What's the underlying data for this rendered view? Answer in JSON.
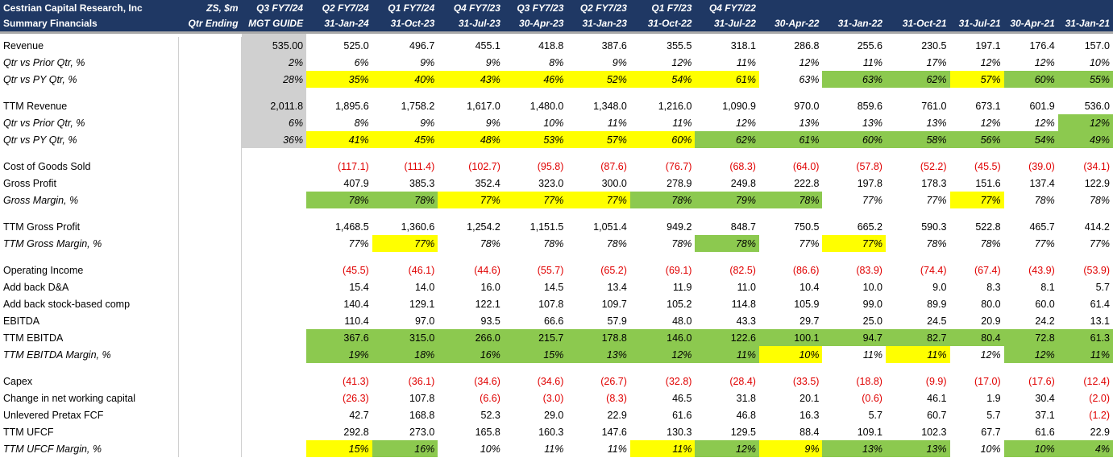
{
  "header": {
    "title_line1": "Cestrian Capital Research, Inc",
    "title_line2": "Summary Financials",
    "unit_line1": "ZS, $m",
    "unit_line2": "Qtr Ending",
    "periods_line1": [
      "Q3 FY7/24",
      "Q2 FY7/24",
      "Q1 FY7/24",
      "Q4 FY7/23",
      "Q3 FY7/23",
      "Q2 FY7/23",
      "Q1 F7/23",
      "Q4 FY7/22",
      "",
      "",
      "",
      "",
      "",
      ""
    ],
    "periods_line2": [
      "MGT GUIDE",
      "31-Jan-24",
      "31-Oct-23",
      "31-Jul-23",
      "30-Apr-23",
      "31-Jan-23",
      "31-Oct-22",
      "31-Jul-22",
      "30-Apr-22",
      "31-Jan-22",
      "31-Oct-21",
      "31-Jul-21",
      "30-Apr-21",
      "31-Jan-21"
    ]
  },
  "rows": [
    {
      "label": "Revenue",
      "italic": false,
      "values": [
        "535.00",
        "525.0",
        "496.7",
        "455.1",
        "418.8",
        "387.6",
        "355.5",
        "318.1",
        "286.8",
        "255.6",
        "230.5",
        "197.1",
        "176.4",
        "157.0"
      ],
      "fills": [
        "",
        "",
        "",
        "",
        "",
        "",
        "",
        "",
        "",
        "",
        "",
        "",
        "",
        ""
      ]
    },
    {
      "label": "Qtr vs Prior Qtr, %",
      "italic": true,
      "values": [
        "2%",
        "6%",
        "9%",
        "9%",
        "8%",
        "9%",
        "12%",
        "11%",
        "12%",
        "11%",
        "17%",
        "12%",
        "12%",
        "10%"
      ],
      "fills": [
        "",
        "",
        "",
        "",
        "",
        "",
        "",
        "",
        "",
        "",
        "",
        "",
        "",
        ""
      ]
    },
    {
      "label": "Qtr vs PY Qtr, %",
      "italic": true,
      "values": [
        "28%",
        "35%",
        "40%",
        "43%",
        "46%",
        "52%",
        "54%",
        "61%",
        "63%",
        "63%",
        "62%",
        "57%",
        "60%",
        "55%"
      ],
      "fills": [
        "",
        "y",
        "y",
        "y",
        "y",
        "y",
        "y",
        "y",
        "",
        "g",
        "g",
        "y",
        "g",
        "g"
      ]
    },
    {
      "gap": true
    },
    {
      "label": "TTM Revenue",
      "italic": false,
      "values": [
        "2,011.8",
        "1,895.6",
        "1,758.2",
        "1,617.0",
        "1,480.0",
        "1,348.0",
        "1,216.0",
        "1,090.9",
        "970.0",
        "859.6",
        "761.0",
        "673.1",
        "601.9",
        "536.0"
      ],
      "fills": [
        "",
        "",
        "",
        "",
        "",
        "",
        "",
        "",
        "",
        "",
        "",
        "",
        "",
        ""
      ]
    },
    {
      "label": "Qtr vs Prior Qtr, %",
      "italic": true,
      "values": [
        "6%",
        "8%",
        "9%",
        "9%",
        "10%",
        "11%",
        "11%",
        "12%",
        "13%",
        "13%",
        "13%",
        "12%",
        "12%",
        "12%"
      ],
      "fills": [
        "",
        "",
        "",
        "",
        "",
        "",
        "",
        "",
        "",
        "",
        "",
        "",
        "",
        "g"
      ]
    },
    {
      "label": "Qtr vs PY Qtr, %",
      "italic": true,
      "values": [
        "36%",
        "41%",
        "45%",
        "48%",
        "53%",
        "57%",
        "60%",
        "62%",
        "61%",
        "60%",
        "58%",
        "56%",
        "54%",
        "49%"
      ],
      "fills": [
        "",
        "y",
        "y",
        "y",
        "y",
        "y",
        "y",
        "g",
        "g",
        "g",
        "g",
        "g",
        "g",
        "g"
      ]
    },
    {
      "gap": true
    },
    {
      "label": "Cost of Goods Sold",
      "italic": false,
      "values": [
        "",
        "(117.1)",
        "(111.4)",
        "(102.7)",
        "(95.8)",
        "(87.6)",
        "(76.7)",
        "(68.3)",
        "(64.0)",
        "(57.8)",
        "(52.2)",
        "(45.5)",
        "(39.0)",
        "(34.1)"
      ],
      "fills": [
        "",
        "",
        "",
        "",
        "",
        "",
        "",
        "",
        "",
        "",
        "",
        "",
        "",
        ""
      ]
    },
    {
      "label": "Gross Profit",
      "italic": false,
      "values": [
        "",
        "407.9",
        "385.3",
        "352.4",
        "323.0",
        "300.0",
        "278.9",
        "249.8",
        "222.8",
        "197.8",
        "178.3",
        "151.6",
        "137.4",
        "122.9"
      ],
      "fills": [
        "",
        "",
        "",
        "",
        "",
        "",
        "",
        "",
        "",
        "",
        "",
        "",
        "",
        ""
      ]
    },
    {
      "label": "Gross Margin, %",
      "italic": true,
      "values": [
        "",
        "78%",
        "78%",
        "77%",
        "77%",
        "77%",
        "78%",
        "79%",
        "78%",
        "77%",
        "77%",
        "77%",
        "78%",
        "78%"
      ],
      "fills": [
        "",
        "g",
        "g",
        "y",
        "y",
        "y",
        "g",
        "g",
        "g",
        "",
        "",
        "y",
        "",
        ""
      ]
    },
    {
      "gap": true
    },
    {
      "label": "TTM Gross Profit",
      "italic": false,
      "values": [
        "",
        "1,468.5",
        "1,360.6",
        "1,254.2",
        "1,151.5",
        "1,051.4",
        "949.2",
        "848.7",
        "750.5",
        "665.2",
        "590.3",
        "522.8",
        "465.7",
        "414.2"
      ],
      "fills": [
        "",
        "",
        "",
        "",
        "",
        "",
        "",
        "",
        "",
        "",
        "",
        "",
        "",
        ""
      ]
    },
    {
      "label": "TTM Gross Margin, %",
      "italic": true,
      "values": [
        "",
        "77%",
        "77%",
        "78%",
        "78%",
        "78%",
        "78%",
        "78%",
        "77%",
        "77%",
        "78%",
        "78%",
        "77%",
        "77%"
      ],
      "fills": [
        "",
        "",
        "y",
        "",
        "",
        "",
        "",
        "g",
        "",
        "y",
        "",
        "",
        "",
        ""
      ]
    },
    {
      "gap": true
    },
    {
      "label": "Operating Income",
      "italic": false,
      "values": [
        "",
        "(45.5)",
        "(46.1)",
        "(44.6)",
        "(55.7)",
        "(65.2)",
        "(69.1)",
        "(82.5)",
        "(86.6)",
        "(83.9)",
        "(74.4)",
        "(67.4)",
        "(43.9)",
        "(53.9)"
      ],
      "fills": [
        "",
        "",
        "",
        "",
        "",
        "",
        "",
        "",
        "",
        "",
        "",
        "",
        "",
        ""
      ]
    },
    {
      "label": "Add back D&A",
      "italic": false,
      "values": [
        "",
        "15.4",
        "14.0",
        "16.0",
        "14.5",
        "13.4",
        "11.9",
        "11.0",
        "10.4",
        "10.0",
        "9.0",
        "8.3",
        "8.1",
        "5.7"
      ],
      "fills": [
        "",
        "",
        "",
        "",
        "",
        "",
        "",
        "",
        "",
        "",
        "",
        "",
        "",
        ""
      ]
    },
    {
      "label": "Add back stock-based comp",
      "italic": false,
      "values": [
        "",
        "140.4",
        "129.1",
        "122.1",
        "107.8",
        "109.7",
        "105.2",
        "114.8",
        "105.9",
        "99.0",
        "89.9",
        "80.0",
        "60.0",
        "61.4"
      ],
      "fills": [
        "",
        "",
        "",
        "",
        "",
        "",
        "",
        "",
        "",
        "",
        "",
        "",
        "",
        ""
      ]
    },
    {
      "label": "EBITDA",
      "italic": false,
      "values": [
        "",
        "110.4",
        "97.0",
        "93.5",
        "66.6",
        "57.9",
        "48.0",
        "43.3",
        "29.7",
        "25.0",
        "24.5",
        "20.9",
        "24.2",
        "13.1"
      ],
      "fills": [
        "",
        "",
        "",
        "",
        "",
        "",
        "",
        "",
        "",
        "",
        "",
        "",
        "",
        ""
      ]
    },
    {
      "label": "TTM EBITDA",
      "italic": false,
      "values": [
        "",
        "367.6",
        "315.0",
        "266.0",
        "215.7",
        "178.8",
        "146.0",
        "122.6",
        "100.1",
        "94.7",
        "82.7",
        "80.4",
        "72.8",
        "61.3"
      ],
      "fills": [
        "",
        "g",
        "g",
        "g",
        "g",
        "g",
        "g",
        "g",
        "g",
        "g",
        "g",
        "g",
        "g",
        "g"
      ]
    },
    {
      "label": "TTM EBITDA Margin, %",
      "italic": true,
      "values": [
        "",
        "19%",
        "18%",
        "16%",
        "15%",
        "13%",
        "12%",
        "11%",
        "10%",
        "11%",
        "11%",
        "12%",
        "12%",
        "11%"
      ],
      "fills": [
        "",
        "g",
        "g",
        "g",
        "g",
        "g",
        "g",
        "g",
        "y",
        "",
        "y",
        "",
        "g",
        "g"
      ]
    },
    {
      "gap": true
    },
    {
      "label": "Capex",
      "italic": false,
      "values": [
        "",
        "(41.3)",
        "(36.1)",
        "(34.6)",
        "(34.6)",
        "(26.7)",
        "(32.8)",
        "(28.4)",
        "(33.5)",
        "(18.8)",
        "(9.9)",
        "(17.0)",
        "(17.6)",
        "(12.4)"
      ],
      "fills": [
        "",
        "",
        "",
        "",
        "",
        "",
        "",
        "",
        "",
        "",
        "",
        "",
        "",
        ""
      ]
    },
    {
      "label": "Change in net working capital",
      "italic": false,
      "values": [
        "",
        "(26.3)",
        "107.8",
        "(6.6)",
        "(3.0)",
        "(8.3)",
        "46.5",
        "31.8",
        "20.1",
        "(0.6)",
        "46.1",
        "1.9",
        "30.4",
        "(2.0)"
      ],
      "fills": [
        "",
        "",
        "",
        "",
        "",
        "",
        "",
        "",
        "",
        "",
        "",
        "",
        "",
        ""
      ]
    },
    {
      "label": "Unlevered Pretax FCF",
      "italic": false,
      "values": [
        "",
        "42.7",
        "168.8",
        "52.3",
        "29.0",
        "22.9",
        "61.6",
        "46.8",
        "16.3",
        "5.7",
        "60.7",
        "5.7",
        "37.1",
        "(1.2)"
      ],
      "fills": [
        "",
        "",
        "",
        "",
        "",
        "",
        "",
        "",
        "",
        "",
        "",
        "",
        "",
        ""
      ]
    },
    {
      "label": "TTM UFCF",
      "italic": false,
      "values": [
        "",
        "292.8",
        "273.0",
        "165.8",
        "160.3",
        "147.6",
        "130.3",
        "129.5",
        "88.4",
        "109.1",
        "102.3",
        "67.7",
        "61.6",
        "22.9"
      ],
      "fills": [
        "",
        "",
        "",
        "",
        "",
        "",
        "",
        "",
        "",
        "",
        "",
        "",
        "",
        ""
      ]
    },
    {
      "label": "TTM UFCF Margin, %",
      "italic": true,
      "values": [
        "",
        "15%",
        "16%",
        "10%",
        "11%",
        "11%",
        "11%",
        "12%",
        "9%",
        "13%",
        "13%",
        "10%",
        "10%",
        "4%"
      ],
      "fills": [
        "",
        "y",
        "g",
        "",
        "",
        "",
        "y",
        "g",
        "y",
        "g",
        "g",
        "",
        "g",
        "g"
      ]
    }
  ]
}
